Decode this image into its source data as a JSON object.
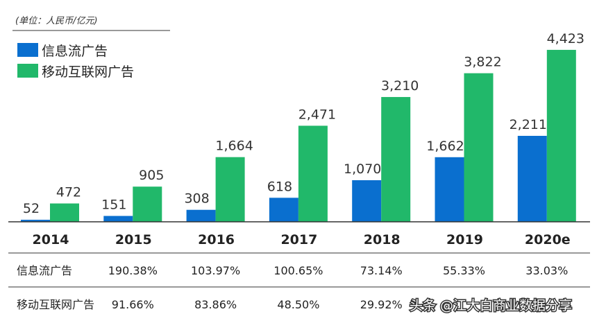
{
  "chart_data": {
    "type": "bar",
    "unit_label": "(单位：人民币/亿元)",
    "categories": [
      "2014",
      "2015",
      "2016",
      "2017",
      "2018",
      "2019",
      "2020e"
    ],
    "series": [
      {
        "name": "信息流广告",
        "color": "#0a6fcf",
        "values": [
          52,
          151,
          308,
          618,
          1070,
          1662,
          2211
        ],
        "value_labels": [
          "52",
          "151",
          "308",
          "618",
          "1,070",
          "1,662",
          "2,211"
        ]
      },
      {
        "name": "移动互联网广告",
        "color": "#21b86a",
        "values": [
          472,
          905,
          1664,
          2471,
          3210,
          3822,
          4423
        ],
        "value_labels": [
          "472",
          "905",
          "1,664",
          "2,471",
          "3,210",
          "3,822",
          "4,423"
        ]
      }
    ],
    "ylim": [
      0,
      4600
    ],
    "legend": "top-left",
    "table": {
      "rows": [
        {
          "label": "信息流广告",
          "values": [
            "190.38%",
            "103.97%",
            "100.65%",
            "73.14%",
            "55.33%",
            "33.03%"
          ]
        },
        {
          "label": "移动互联网广告",
          "values": [
            "91.66%",
            "83.86%",
            "48.50%",
            "29.92%",
            "",
            ""
          ]
        }
      ]
    }
  },
  "watermark": "头条 @江大白商业数据分享"
}
